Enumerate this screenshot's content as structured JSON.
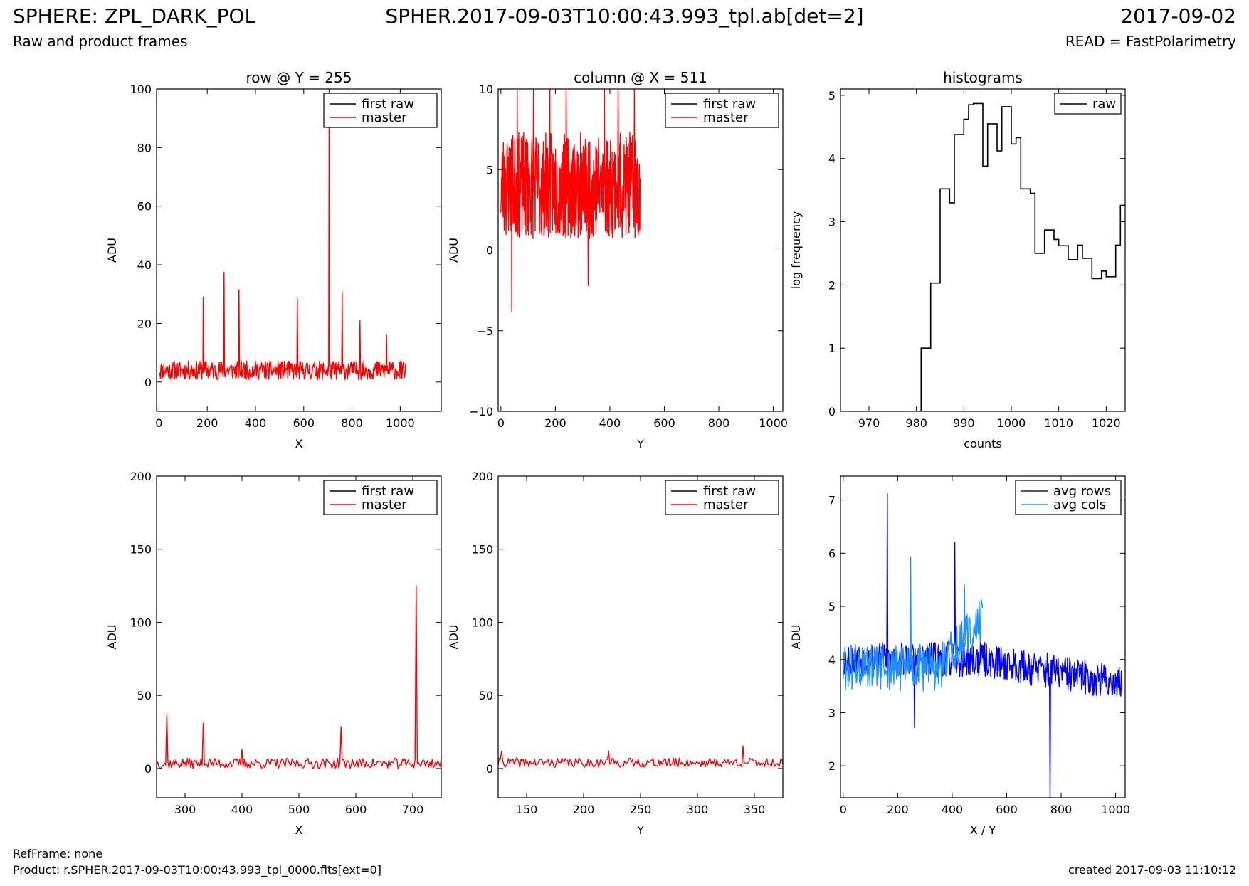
{
  "header": {
    "title": "SPHERE: ZPL_DARK_POL",
    "file": "SPHER.2017-09-03T10:00:43.993_tpl.ab[det=2]",
    "date": "2017-09-02",
    "subtitle": "Raw and product frames",
    "read_mode": "READ = FastPolarimetry"
  },
  "footer": {
    "ref_frame": "RefFrame: none",
    "product": "Product: r.SPHER.2017-09-03T10:00:43.993_tpl_0000.fits[ext=0]",
    "created": "created 2017-09-03 11:10:12"
  },
  "colors": {
    "first_raw": "#000000",
    "master": "#ff0000",
    "raw": "#000000",
    "avg_rows": "#0000ff",
    "avg_cols": "#1e90ff"
  },
  "chart_data": [
    {
      "id": "row-full",
      "type": "line",
      "title": "row @ Y = 255",
      "xlabel": "X",
      "ylabel": "ADU",
      "xlim": [
        -10,
        1170
      ],
      "ylim": [
        -10,
        100
      ],
      "xticks": [
        0,
        200,
        400,
        600,
        800,
        1000
      ],
      "yticks": [
        0,
        20,
        40,
        60,
        80,
        100
      ],
      "legend": [
        "first raw",
        "master"
      ],
      "legend_placement": "top-right",
      "series": [
        {
          "name": "master",
          "color": "#ff0000",
          "noise": {
            "x_start": 0,
            "x_end": 1023,
            "n": 512,
            "mean": 4,
            "amp": 3.2,
            "seed": 11
          },
          "spikes": [
            [
              184,
              29
            ],
            [
              270,
              37.5
            ],
            [
              332,
              31.5
            ],
            [
              574,
              28.5
            ],
            [
              706,
              100
            ],
            [
              760,
              30.5
            ],
            [
              834,
              21
            ],
            [
              944,
              16
            ]
          ]
        }
      ]
    },
    {
      "id": "column-full",
      "type": "line",
      "title": "column @ X = 511",
      "xlabel": "Y",
      "ylabel": "ADU",
      "xlim": [
        -10,
        1035
      ],
      "ylim": [
        -10,
        10
      ],
      "xticks": [
        0,
        200,
        400,
        600,
        800,
        1000
      ],
      "yticks": [
        -10,
        -5,
        0,
        5,
        10
      ],
      "legend": [
        "first raw",
        "master"
      ],
      "legend_placement": "top-right",
      "series": [
        {
          "name": "master",
          "color": "#ff0000",
          "noise": {
            "x_start": 0,
            "x_end": 511,
            "n": 512,
            "mean": 4,
            "amp": 3.3,
            "seed": 23
          },
          "spikes": [
            [
              40,
              -3.8
            ],
            [
              60,
              10
            ],
            [
              120,
              10
            ],
            [
              180,
              10
            ],
            [
              240,
              10
            ],
            [
              320,
              -2.2
            ],
            [
              380,
              10
            ],
            [
              430,
              10
            ],
            [
              490,
              10
            ]
          ]
        }
      ]
    },
    {
      "id": "histogram",
      "type": "step",
      "title": "histograms",
      "xlabel": "counts",
      "ylabel": "log frequency",
      "xlim": [
        964,
        1024
      ],
      "ylim": [
        0,
        5.1
      ],
      "xticks": [
        970,
        980,
        990,
        1000,
        1010,
        1020
      ],
      "yticks": [
        0,
        1,
        2,
        3,
        4,
        5
      ],
      "legend": [
        "raw"
      ],
      "legend_placement": "top-right",
      "bin_edges": [
        964,
        981,
        982,
        983,
        984,
        985,
        986,
        987,
        988,
        989,
        990,
        991,
        992,
        993,
        994,
        995,
        996,
        997,
        998,
        999,
        1000,
        1001,
        1002,
        1003,
        1004,
        1005,
        1006,
        1007,
        1008,
        1009,
        1010,
        1011,
        1012,
        1013,
        1014,
        1015,
        1016,
        1017,
        1018,
        1019,
        1020,
        1021,
        1022,
        1023,
        1024
      ],
      "log_frequency": [
        0,
        1,
        1,
        2.03,
        2.03,
        3.52,
        3.52,
        3.3,
        4.38,
        4.38,
        4.62,
        4.85,
        4.87,
        4.87,
        3.88,
        4.55,
        4.55,
        4.12,
        4.82,
        4.82,
        4.23,
        4.33,
        3.52,
        3.52,
        3.45,
        2.5,
        2.5,
        2.87,
        2.87,
        2.72,
        2.62,
        2.62,
        2.4,
        2.4,
        2.63,
        2.42,
        2.42,
        2.1,
        2.1,
        2.22,
        2.13,
        2.13,
        2.63,
        3.26
      ]
    },
    {
      "id": "row-zoom",
      "type": "line",
      "title": "",
      "xlabel": "X",
      "ylabel": "ADU",
      "xlim": [
        250,
        750
      ],
      "ylim": [
        -20,
        200
      ],
      "xticks": [
        300,
        400,
        500,
        600,
        700
      ],
      "yticks": [
        0,
        50,
        100,
        150,
        200
      ],
      "legend": [
        "first raw",
        "master"
      ],
      "legend_placement": "top-right",
      "series": [
        {
          "name": "master",
          "color": "#ff0000",
          "noise": {
            "x_start": 250,
            "x_end": 750,
            "n": 250,
            "mean": 3.5,
            "amp": 3.5,
            "seed": 37
          },
          "spikes": [
            [
              268,
              37.5
            ],
            [
              332,
              31
            ],
            [
              400,
              13
            ],
            [
              574,
              28.5
            ],
            [
              706,
              125
            ]
          ]
        }
      ]
    },
    {
      "id": "column-zoom",
      "type": "line",
      "title": "",
      "xlabel": "Y",
      "ylabel": "ADU",
      "xlim": [
        125,
        375
      ],
      "ylim": [
        -20,
        200
      ],
      "xticks": [
        150,
        200,
        250,
        300,
        350
      ],
      "yticks": [
        0,
        50,
        100,
        150,
        200
      ],
      "legend": [
        "first raw",
        "master"
      ],
      "legend_placement": "top-right",
      "series": [
        {
          "name": "master",
          "color": "#ff0000",
          "noise": {
            "x_start": 125,
            "x_end": 375,
            "n": 250,
            "mean": 4,
            "amp": 3.2,
            "seed": 41
          },
          "spikes": [
            [
              128,
              12
            ],
            [
              222,
              12
            ],
            [
              340,
              15.5
            ]
          ]
        }
      ]
    },
    {
      "id": "averages",
      "type": "line",
      "title": "",
      "xlabel": "X / Y",
      "ylabel": "ADU",
      "xlim": [
        -10,
        1035
      ],
      "ylim": [
        1.4,
        7.45
      ],
      "xticks": [
        0,
        200,
        400,
        600,
        800,
        1000
      ],
      "yticks": [
        2,
        3,
        4,
        5,
        6,
        7
      ],
      "legend": [
        "avg rows",
        "avg cols"
      ],
      "legend_placement": "top-right",
      "series": [
        {
          "name": "avg rows",
          "color": "#0000ff",
          "noise": {
            "x_start": 0,
            "x_end": 1023,
            "n": 512,
            "mean": 4,
            "amp": 0.33,
            "trend_end": 3.55,
            "seed": 53
          },
          "spikes": [
            [
              162,
              7.12
            ],
            [
              262,
              2.72
            ],
            [
              410,
              6.2
            ],
            [
              760,
              1.4
            ]
          ]
        },
        {
          "name": "avg cols",
          "color": "#1e90ff",
          "noise": {
            "x_start": 0,
            "x_end": 511,
            "n": 256,
            "mean": 3.85,
            "amp": 0.45,
            "rise_end": 4.75,
            "seed": 61
          },
          "spikes": [
            [
              248,
              5.93
            ],
            [
              445,
              5.4
            ]
          ]
        }
      ]
    }
  ]
}
